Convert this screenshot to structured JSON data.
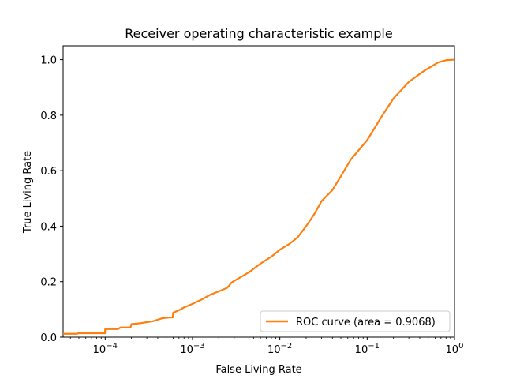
{
  "chart_data": {
    "type": "line",
    "title": "Receiver operating characteristic example",
    "xlabel": "False Living Rate",
    "ylabel": "True Living Rate",
    "xscale": "log",
    "xlim": [
      3.3e-05,
      1.0
    ],
    "ylim": [
      0.0,
      1.05
    ],
    "x_ticks": [
      {
        "value": 0.0001,
        "base": "10",
        "exp": "−4"
      },
      {
        "value": 0.001,
        "base": "10",
        "exp": "−3"
      },
      {
        "value": 0.01,
        "base": "10",
        "exp": "−2"
      },
      {
        "value": 0.1,
        "base": "10",
        "exp": "−1"
      },
      {
        "value": 1.0,
        "base": "10",
        "exp": "0"
      }
    ],
    "y_ticks": [
      {
        "value": 0.0,
        "label": "0.0"
      },
      {
        "value": 0.2,
        "label": "0.2"
      },
      {
        "value": 0.4,
        "label": "0.4"
      },
      {
        "value": 0.6,
        "label": "0.6"
      },
      {
        "value": 0.8,
        "label": "0.8"
      },
      {
        "value": 1.0,
        "label": "1.0"
      }
    ],
    "legend_position": "lower-right",
    "series": [
      {
        "name": "ROC curve (area = 0.9068)",
        "color": "#ff7f0e",
        "points": [
          [
            3.3e-05,
            0.012
          ],
          [
            4.8e-05,
            0.012
          ],
          [
            4.9e-05,
            0.014
          ],
          [
            9.95e-05,
            0.014
          ],
          [
            0.0001,
            0.029
          ],
          [
            0.00014,
            0.029
          ],
          [
            0.00015,
            0.035
          ],
          [
            0.000195,
            0.035
          ],
          [
            0.0002,
            0.047
          ],
          [
            0.00025,
            0.05
          ],
          [
            0.0003,
            0.054
          ],
          [
            0.00035,
            0.057
          ],
          [
            0.0004,
            0.063
          ],
          [
            0.00045,
            0.068
          ],
          [
            0.00055,
            0.071
          ],
          [
            0.000595,
            0.071
          ],
          [
            0.0006,
            0.088
          ],
          [
            0.0007,
            0.097
          ],
          [
            0.0008,
            0.107
          ],
          [
            0.001,
            0.12
          ],
          [
            0.0013,
            0.137
          ],
          [
            0.0016,
            0.153
          ],
          [
            0.002,
            0.165
          ],
          [
            0.0025,
            0.178
          ],
          [
            0.0028,
            0.197
          ],
          [
            0.0035,
            0.215
          ],
          [
            0.0045,
            0.235
          ],
          [
            0.006,
            0.265
          ],
          [
            0.008,
            0.29
          ],
          [
            0.01,
            0.315
          ],
          [
            0.013,
            0.337
          ],
          [
            0.016,
            0.36
          ],
          [
            0.02,
            0.4
          ],
          [
            0.025,
            0.445
          ],
          [
            0.03,
            0.49
          ],
          [
            0.04,
            0.53
          ],
          [
            0.05,
            0.58
          ],
          [
            0.065,
            0.64
          ],
          [
            0.1,
            0.71
          ],
          [
            0.15,
            0.8
          ],
          [
            0.2,
            0.86
          ],
          [
            0.3,
            0.92
          ],
          [
            0.45,
            0.96
          ],
          [
            0.65,
            0.99
          ],
          [
            0.8,
            0.998
          ],
          [
            1.0,
            1.0
          ]
        ]
      }
    ]
  }
}
